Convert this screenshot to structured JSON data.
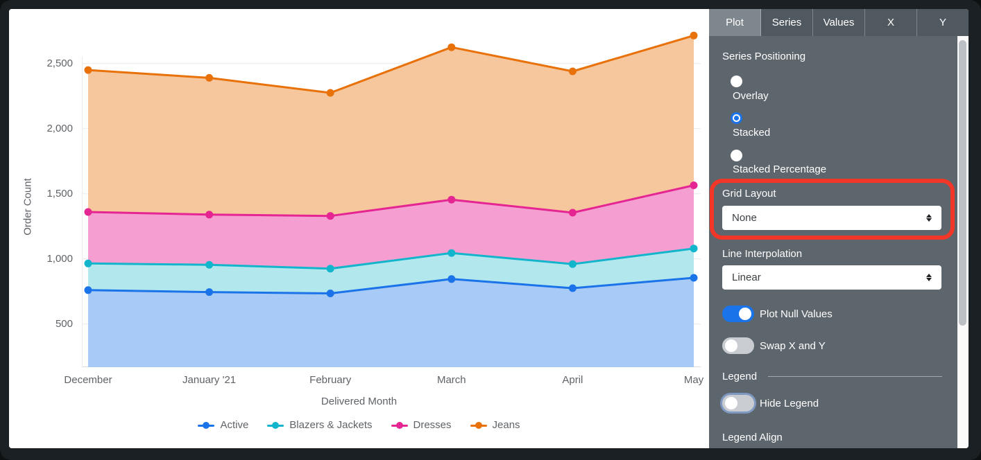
{
  "chart": {
    "y_axis_title": "Order Count",
    "x_axis_title": "Delivered Month",
    "y_ticks": [
      {
        "v": 2500,
        "label": "2,500"
      },
      {
        "v": 2000,
        "label": "2,000"
      },
      {
        "v": 1500,
        "label": "1,500"
      },
      {
        "v": 1000,
        "label": "1,000"
      },
      {
        "v": 500,
        "label": "500"
      }
    ]
  },
  "chart_data": {
    "type": "area",
    "stacked": true,
    "title": "",
    "xlabel": "Delivered Month",
    "ylabel": "Order Count",
    "x": [
      "December",
      "January '21",
      "February",
      "March",
      "April",
      "May"
    ],
    "series": [
      {
        "name": "Active",
        "color": "#1a73e8",
        "fill": "#a8caf6",
        "values": [
          760,
          745,
          735,
          845,
          775,
          855
        ]
      },
      {
        "name": "Blazers & Jackets",
        "color": "#12b5cb",
        "fill": "#b3e7ee",
        "values": [
          205,
          210,
          190,
          200,
          185,
          225
        ]
      },
      {
        "name": "Dresses",
        "color": "#e52592",
        "fill": "#f49ed1",
        "values": [
          395,
          385,
          405,
          410,
          395,
          485
        ]
      },
      {
        "name": "Jeans",
        "color": "#e8710a",
        "fill": "#f6c69d",
        "values": [
          1090,
          1050,
          945,
          1170,
          1085,
          1150
        ]
      }
    ],
    "stacked_totals_note": "cumulative tops: Dec 760/965/1360/2450, Jan 745/955/1340/2390, Feb 735/925/1330/2275, Mar 845/1045/1455/2625, Apr 775/960/1355/2440, May 855/1080/1565/2715",
    "ylim": [
      0,
      2750
    ],
    "grid": "horizontal",
    "legend_position": "bottom"
  },
  "panel": {
    "tabs": [
      {
        "label": "Plot",
        "selected": true
      },
      {
        "label": "Series",
        "selected": false
      },
      {
        "label": "Values",
        "selected": false
      },
      {
        "label": "X",
        "selected": false
      },
      {
        "label": "Y",
        "selected": false
      }
    ],
    "series_positioning": {
      "label": "Series Positioning",
      "options": [
        {
          "label": "Overlay",
          "selected": false
        },
        {
          "label": "Stacked",
          "selected": true
        },
        {
          "label": "Stacked Percentage",
          "selected": false
        }
      ]
    },
    "grid_layout": {
      "label": "Grid Layout",
      "value": "None",
      "icon": "updown-arrows"
    },
    "line_interpolation": {
      "label": "Line Interpolation",
      "value": "Linear",
      "icon": "updown-arrows"
    },
    "plot_null_values": {
      "label": "Plot Null Values",
      "on": true
    },
    "swap_x_y": {
      "label": "Swap X and Y",
      "on": false
    },
    "legend_section": {
      "header": "Legend",
      "hide_legend": {
        "label": "Hide Legend",
        "on": false,
        "focused": true
      },
      "legend_align_label": "Legend Align"
    }
  },
  "annotation": {
    "shape": "highlight-box",
    "color": "#f23728",
    "target": "Grid Layout"
  }
}
